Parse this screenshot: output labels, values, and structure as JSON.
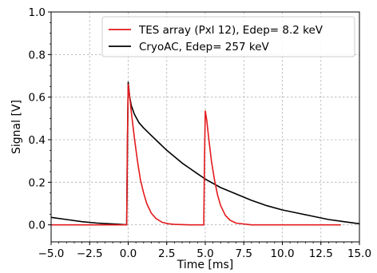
{
  "chart_data": {
    "type": "line",
    "xlabel": "Time [ms]",
    "ylabel": "Signal [V]",
    "xlim": [
      -5.0,
      15.0
    ],
    "ylim": [
      -0.08,
      1.0
    ],
    "xticks": [
      -5.0,
      -2.5,
      0.0,
      2.5,
      5.0,
      7.5,
      10.0,
      12.5,
      15.0
    ],
    "xtick_labels": [
      "−5.0",
      "−2.5",
      "0.0",
      "2.5",
      "5.0",
      "7.5",
      "10.0",
      "12.5",
      "15.0"
    ],
    "yticks": [
      0.0,
      0.2,
      0.4,
      0.6,
      0.8,
      1.0
    ],
    "ytick_labels": [
      "0.0",
      "0.2",
      "0.4",
      "0.6",
      "0.8",
      "1.0"
    ],
    "grid": true,
    "legend_position": "upper-right",
    "series": [
      {
        "name": "TES array (Pxl 12), Edep= 8.2 keV",
        "color": "#e31a1c",
        "x": [
          -5.0,
          -2.5,
          -0.1,
          -0.05,
          0.0,
          0.1,
          0.2,
          0.4,
          0.6,
          0.8,
          1.0,
          1.2,
          1.5,
          1.8,
          2.2,
          2.6,
          3.0,
          4.0,
          4.9,
          4.95,
          5.0,
          5.1,
          5.2,
          5.4,
          5.6,
          5.8,
          6.0,
          6.3,
          6.6,
          7.0,
          8.0,
          10.0,
          12.0,
          13.8
        ],
        "y": [
          0.0,
          0.0,
          0.0,
          0.4,
          0.66,
          0.6,
          0.53,
          0.41,
          0.3,
          0.21,
          0.15,
          0.1,
          0.055,
          0.03,
          0.012,
          0.005,
          0.002,
          0.0,
          0.0,
          0.3,
          0.535,
          0.49,
          0.42,
          0.3,
          0.21,
          0.14,
          0.09,
          0.045,
          0.022,
          0.008,
          0.0,
          0.0,
          0.0,
          0.0
        ]
      },
      {
        "name": "CryoAC, Edep= 257 keV",
        "color": "#000000",
        "x": [
          -5.0,
          -4.0,
          -3.0,
          -2.0,
          -1.0,
          -0.5,
          -0.1,
          -0.05,
          0.0,
          0.1,
          0.2,
          0.4,
          0.7,
          1.0,
          1.5,
          2.0,
          2.5,
          3.0,
          3.5,
          4.0,
          4.5,
          5.0,
          5.5,
          6.0,
          7.0,
          8.0,
          9.0,
          10.0,
          11.0,
          12.0,
          13.0,
          14.0,
          15.0
        ],
        "y": [
          0.035,
          0.025,
          0.015,
          0.008,
          0.004,
          0.002,
          0.0,
          0.35,
          0.67,
          0.6,
          0.56,
          0.52,
          0.48,
          0.455,
          0.42,
          0.385,
          0.35,
          0.32,
          0.29,
          0.265,
          0.24,
          0.215,
          0.195,
          0.175,
          0.145,
          0.115,
          0.09,
          0.07,
          0.055,
          0.04,
          0.025,
          0.015,
          0.005
        ]
      }
    ]
  }
}
